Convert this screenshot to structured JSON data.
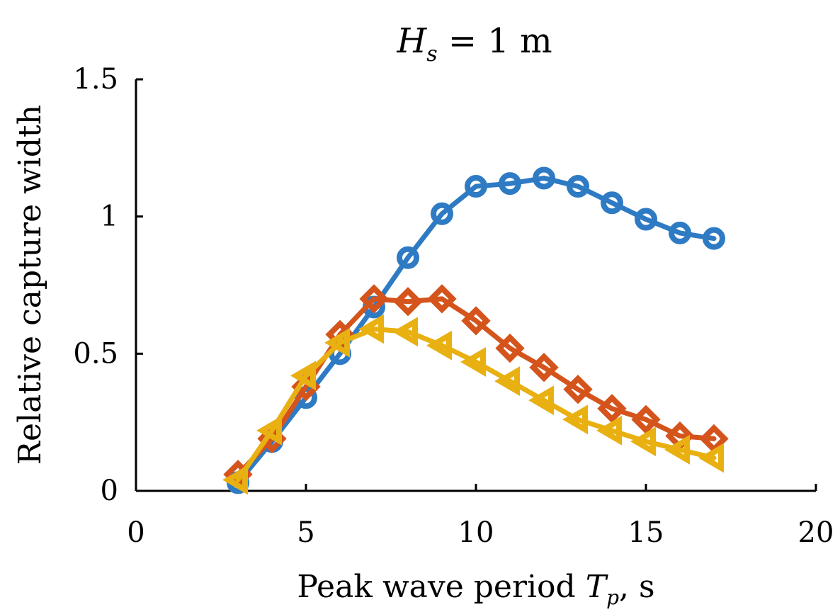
{
  "chart_data": {
    "type": "line",
    "title": {
      "symbol": "H",
      "subscript": "s",
      "rest": " = 1 m"
    },
    "xlabel": {
      "prefix": "Peak wave period ",
      "symbol": "T",
      "subscript": "p",
      "suffix": ", s"
    },
    "ylabel": "Relative capture width",
    "xlim": [
      0,
      20
    ],
    "ylim": [
      0,
      1.5
    ],
    "xticks": [
      0,
      5,
      10,
      15,
      20
    ],
    "xtick_labels": [
      "0",
      "5",
      "10",
      "15",
      "20"
    ],
    "yticks": [
      0,
      0.5,
      1,
      1.5
    ],
    "ytick_labels": [
      "0",
      "0.5",
      "1",
      "1.5"
    ],
    "grid": false,
    "series": [
      {
        "color": "#2E7BC4",
        "marker": "circle",
        "x": [
          3,
          4,
          5,
          6,
          7,
          8,
          9,
          10,
          11,
          12,
          13,
          14,
          15,
          16,
          17
        ],
        "y": [
          0.03,
          0.18,
          0.34,
          0.5,
          0.67,
          0.85,
          1.01,
          1.11,
          1.12,
          1.14,
          1.11,
          1.05,
          0.99,
          0.94,
          0.92
        ]
      },
      {
        "color": "#D4541C",
        "marker": "diamond",
        "x": [
          3,
          4,
          5,
          6,
          7,
          8,
          9,
          10,
          11,
          12,
          13,
          14,
          15,
          16,
          17
        ],
        "y": [
          0.06,
          0.19,
          0.38,
          0.57,
          0.7,
          0.69,
          0.7,
          0.62,
          0.52,
          0.45,
          0.37,
          0.3,
          0.26,
          0.2,
          0.19
        ]
      },
      {
        "color": "#E9B011",
        "marker": "triangle-left",
        "x": [
          3,
          4,
          5,
          6,
          7,
          8,
          9,
          10,
          11,
          12,
          13,
          14,
          15,
          16,
          17
        ],
        "y": [
          0.04,
          0.22,
          0.42,
          0.54,
          0.59,
          0.58,
          0.53,
          0.47,
          0.4,
          0.33,
          0.26,
          0.22,
          0.18,
          0.15,
          0.12
        ]
      }
    ]
  }
}
